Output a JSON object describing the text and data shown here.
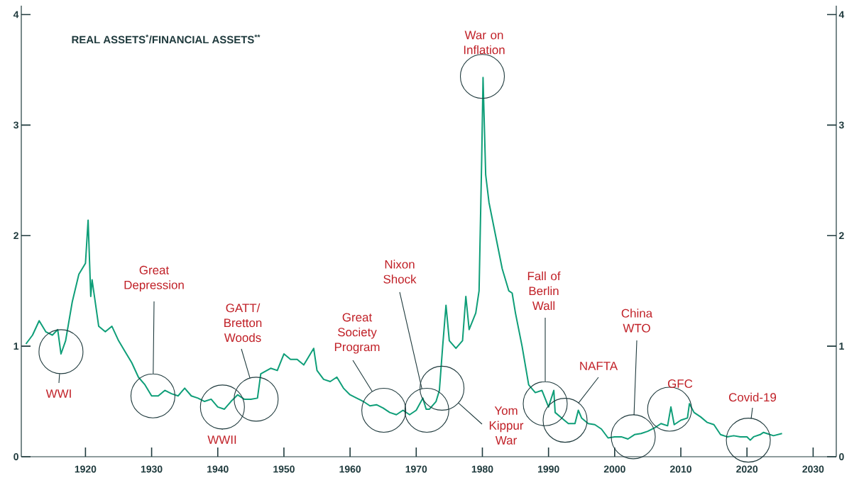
{
  "chart_data": {
    "type": "line",
    "title": "REAL ASSETS$^{*}$/FINANCIAL ASSETS$^{**}$",
    "x": [
      1911,
      1912,
      1913,
      1914,
      1915,
      1915.8,
      1916.3,
      1917,
      1918,
      1919,
      1920,
      1920.4,
      1920.8,
      1921,
      1922,
      1923,
      1924,
      1925,
      1926,
      1927,
      1928,
      1929,
      1930,
      1931,
      1932,
      1933,
      1934,
      1935,
      1936,
      1937,
      1938,
      1939,
      1940,
      1941,
      1942,
      1943,
      1944,
      1945,
      1946,
      1946.5,
      1948,
      1949,
      1950,
      1951,
      1952,
      1953,
      1954,
      1954.5,
      1955,
      1956,
      1957,
      1958,
      1959,
      1960,
      1961,
      1962,
      1963,
      1964,
      1965,
      1966,
      1967,
      1968,
      1969,
      1970,
      1971,
      1971.5,
      1972,
      1973,
      1973.5,
      1974,
      1974.5,
      1975,
      1976,
      1977,
      1977.5,
      1978,
      1979,
      1979.5,
      1979.9,
      1980.1,
      1980.5,
      1981,
      1982,
      1983,
      1984,
      1984.5,
      1985,
      1986,
      1987,
      1988,
      1989,
      1990,
      1990.8,
      1991,
      1992,
      1993,
      1994,
      1994.5,
      1995,
      1996,
      1997,
      1998,
      1999,
      2000,
      2001,
      2002,
      2003,
      2004,
      2005,
      2006,
      2007,
      2008,
      2008.5,
      2009,
      2010,
      2011,
      2011.3,
      2012,
      2013,
      2014,
      2015,
      2016,
      2017,
      2018,
      2019,
      2020,
      2020.5,
      2021,
      2022,
      2022.5,
      2023,
      2024,
      2025.3
    ],
    "series": [
      {
        "color": "#0e9e78",
        "values": [
          1.02,
          1.1,
          1.23,
          1.13,
          1.1,
          1.15,
          0.93,
          1.05,
          1.4,
          1.65,
          1.75,
          2.14,
          1.45,
          1.6,
          1.18,
          1.13,
          1.18,
          1.05,
          0.95,
          0.85,
          0.72,
          0.65,
          0.55,
          0.55,
          0.6,
          0.57,
          0.55,
          0.62,
          0.55,
          0.53,
          0.5,
          0.52,
          0.45,
          0.43,
          0.5,
          0.56,
          0.52,
          0.52,
          0.53,
          0.75,
          0.8,
          0.78,
          0.93,
          0.88,
          0.88,
          0.83,
          0.93,
          0.98,
          0.78,
          0.7,
          0.68,
          0.72,
          0.62,
          0.56,
          0.53,
          0.5,
          0.46,
          0.47,
          0.44,
          0.4,
          0.38,
          0.42,
          0.38,
          0.42,
          0.53,
          0.43,
          0.43,
          0.5,
          0.6,
          1.0,
          1.37,
          1.05,
          0.98,
          1.05,
          1.45,
          1.15,
          1.3,
          1.5,
          2.7,
          3.43,
          2.55,
          2.3,
          2.0,
          1.7,
          1.5,
          1.48,
          1.3,
          1.0,
          0.65,
          0.58,
          0.6,
          0.45,
          0.6,
          0.4,
          0.35,
          0.3,
          0.3,
          0.42,
          0.35,
          0.3,
          0.29,
          0.25,
          0.17,
          0.18,
          0.18,
          0.16,
          0.2,
          0.21,
          0.23,
          0.26,
          0.3,
          0.28,
          0.45,
          0.29,
          0.33,
          0.35,
          0.48,
          0.4,
          0.36,
          0.31,
          0.29,
          0.2,
          0.18,
          0.19,
          0.18,
          0.18,
          0.15,
          0.18,
          0.2,
          0.22,
          0.21,
          0.19,
          0.21
        ]
      }
    ],
    "xlim": [
      1910.3,
      2033.5
    ],
    "xticks": [
      1920,
      1930,
      1940,
      1950,
      1960,
      1970,
      1980,
      1990,
      2000,
      2010,
      2020,
      2030
    ],
    "ylim": [
      0,
      4.08
    ],
    "yticks": [
      0,
      1,
      2,
      3,
      4
    ],
    "y2lim": [
      0,
      4.08
    ],
    "y2ticks": [
      0,
      1,
      2,
      3,
      4
    ],
    "annotations": [
      "WWI",
      "Great Depression",
      "GATT/ Bretton Woods",
      "WWII",
      "Great Society Program",
      "Nixon Shock",
      "Yom Kippur War",
      "War on Inflation",
      "Fall of Berlin Wall",
      "NAFTA",
      "China WTO",
      "GFC",
      "Covid-19"
    ],
    "grid": false,
    "legend": false,
    "marker": "none",
    "line_style": "solid"
  }
}
